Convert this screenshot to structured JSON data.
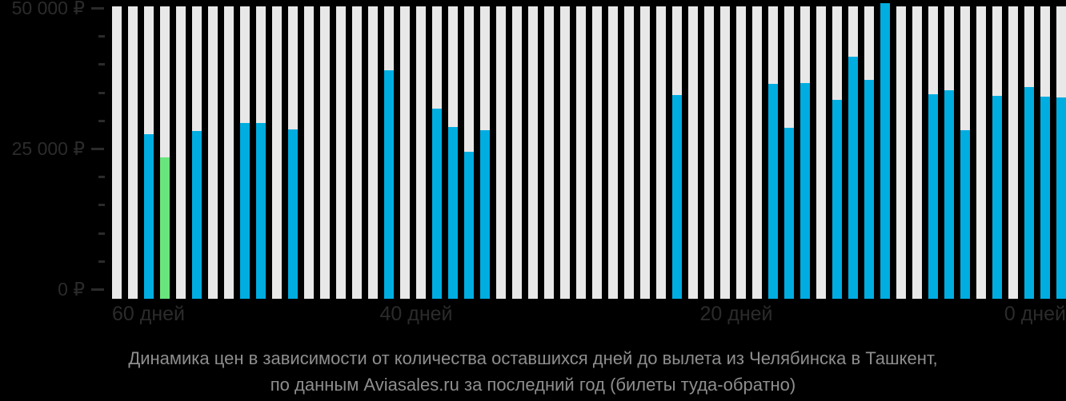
{
  "colors": {
    "background": "#000000",
    "bar_price": "#00ade1",
    "bar_min_price": "#69e57d",
    "bar_empty": "#e8e8e8",
    "axis_text": "#2b2b2b",
    "caption_text": "#8e8e8e"
  },
  "chart_data": {
    "type": "bar",
    "title": "Динамика цен в зависимости от количества оставшихся дней до вылета из Челябинска в Ташкент,",
    "subtitle": "по данным Aviasales.ru за последний год (билеты туда-обратно)",
    "xlabel": "",
    "ylabel": "₽",
    "ylim": [
      0,
      50000
    ],
    "y_minor_tick_step": 5000,
    "grid": false,
    "yticks": [
      {
        "label": "50 000 ₽",
        "value": 50000
      },
      {
        "label": "25 000 ₽",
        "value": 25000
      },
      {
        "label": "0 ₽",
        "value": 0
      }
    ],
    "xticks": [
      "60 дней",
      "40 дней",
      "20 дней",
      "0 дней"
    ],
    "bars": [
      {
        "days_before": 59,
        "price": null
      },
      {
        "days_before": 58,
        "price": null
      },
      {
        "days_before": 57,
        "price": 28200
      },
      {
        "days_before": 56,
        "price": 24200,
        "is_min": true
      },
      {
        "days_before": 55,
        "price": null
      },
      {
        "days_before": 54,
        "price": 28700
      },
      {
        "days_before": 53,
        "price": null
      },
      {
        "days_before": 52,
        "price": null
      },
      {
        "days_before": 51,
        "price": 30000
      },
      {
        "days_before": 50,
        "price": 30000
      },
      {
        "days_before": 49,
        "price": null
      },
      {
        "days_before": 48,
        "price": 29000
      },
      {
        "days_before": 47,
        "price": null
      },
      {
        "days_before": 46,
        "price": null
      },
      {
        "days_before": 45,
        "price": null
      },
      {
        "days_before": 44,
        "price": null
      },
      {
        "days_before": 43,
        "price": null
      },
      {
        "days_before": 42,
        "price": 39100
      },
      {
        "days_before": 41,
        "price": null
      },
      {
        "days_before": 40,
        "price": null
      },
      {
        "days_before": 39,
        "price": 32500
      },
      {
        "days_before": 38,
        "price": 29400
      },
      {
        "days_before": 37,
        "price": 25100
      },
      {
        "days_before": 36,
        "price": 28900
      },
      {
        "days_before": 35,
        "price": null
      },
      {
        "days_before": 34,
        "price": null
      },
      {
        "days_before": 33,
        "price": null
      },
      {
        "days_before": 32,
        "price": null
      },
      {
        "days_before": 31,
        "price": null
      },
      {
        "days_before": 30,
        "price": null
      },
      {
        "days_before": 29,
        "price": null
      },
      {
        "days_before": 28,
        "price": null
      },
      {
        "days_before": 27,
        "price": null
      },
      {
        "days_before": 26,
        "price": null
      },
      {
        "days_before": 25,
        "price": null
      },
      {
        "days_before": 24,
        "price": 34800
      },
      {
        "days_before": 23,
        "price": null
      },
      {
        "days_before": 22,
        "price": null
      },
      {
        "days_before": 21,
        "price": null
      },
      {
        "days_before": 20,
        "price": null
      },
      {
        "days_before": 19,
        "price": null
      },
      {
        "days_before": 18,
        "price": 36800
      },
      {
        "days_before": 17,
        "price": 29300
      },
      {
        "days_before": 16,
        "price": 36900
      },
      {
        "days_before": 15,
        "price": null
      },
      {
        "days_before": 14,
        "price": 34000
      },
      {
        "days_before": 13,
        "price": 41400
      },
      {
        "days_before": 12,
        "price": 37400
      },
      {
        "days_before": 11,
        "price": 50500
      },
      {
        "days_before": 10,
        "price": null
      },
      {
        "days_before": 9,
        "price": null
      },
      {
        "days_before": 8,
        "price": 35000
      },
      {
        "days_before": 7,
        "price": 35600
      },
      {
        "days_before": 6,
        "price": 28800
      },
      {
        "days_before": 5,
        "price": null
      },
      {
        "days_before": 4,
        "price": 34700
      },
      {
        "days_before": 3,
        "price": null
      },
      {
        "days_before": 2,
        "price": 36200
      },
      {
        "days_before": 1,
        "price": 34600
      },
      {
        "days_before": 0,
        "price": 34500
      }
    ]
  }
}
